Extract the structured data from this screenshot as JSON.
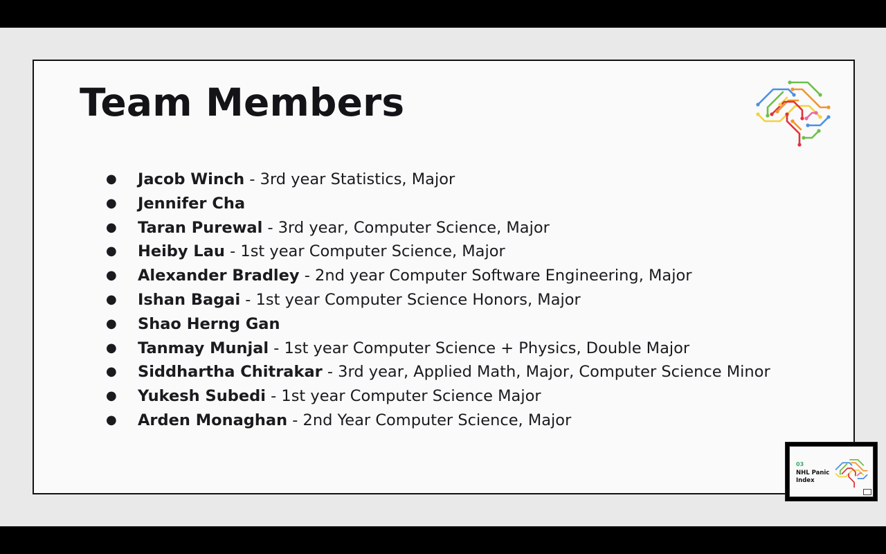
{
  "slide": {
    "title": "Team Members",
    "members": [
      {
        "name": "Jacob Winch",
        "detail": " - 3rd year Statistics, Major"
      },
      {
        "name": "Jennifer Cha",
        "detail": ""
      },
      {
        "name": "Taran Purewal",
        "detail": " - 3rd year, Computer Science, Major"
      },
      {
        "name": "Heiby Lau",
        "detail": " - 1st year Computer Science, Major"
      },
      {
        "name": "Alexander Bradley",
        "detail": " - 2nd year Computer Software Engineering, Major"
      },
      {
        "name": "Ishan Bagai",
        "detail": " - 1st year Computer Science Honors, Major"
      },
      {
        "name": "Shao Herng Gan",
        "detail": ""
      },
      {
        "name": "Tanmay Munjal",
        "detail": " - 1st year Computer Science + Physics, Double Major"
      },
      {
        "name": "Siddhartha Chitrakar",
        "detail": " - 3rd year, Applied Math, Major, Computer Science Minor"
      },
      {
        "name": "Yukesh Subedi",
        "detail": " - 1st year Computer Science Major"
      },
      {
        "name": "Arden Monaghan",
        "detail": " - 2nd Year Computer Science, Major"
      }
    ],
    "bullet": "●",
    "logo_icon": "circuit-brain-icon"
  },
  "thumbnail": {
    "number": "03",
    "title": "NHL Panic Index",
    "logo_icon": "circuit-brain-icon"
  },
  "colors": {
    "stage_background": "#e9e9ea",
    "slide_background": "#fafafa",
    "text": "#141418",
    "logo_blue": "#4a90e2",
    "logo_green": "#6cbf4a",
    "logo_yellow": "#f2d33b",
    "logo_orange": "#f0952e",
    "logo_red": "#e0333a",
    "logo_pink": "#e86aa0"
  }
}
